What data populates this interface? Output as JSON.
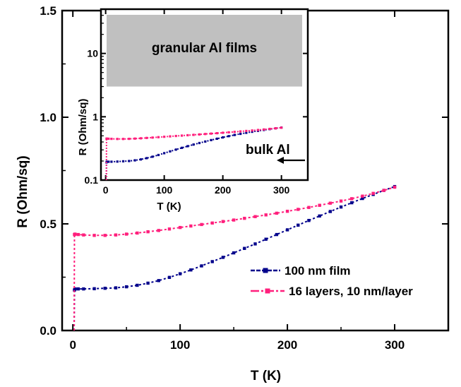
{
  "chart_data": [
    {
      "type": "line",
      "xlabel": "T (K)",
      "ylabel": "R (Ohm/sq)",
      "xlim": [
        -10,
        350
      ],
      "ylim": [
        0.0,
        1.5
      ],
      "xticks": [
        0,
        100,
        200,
        300
      ],
      "xtick_labels": [
        "0",
        "100",
        "200",
        "300"
      ],
      "yticks": [
        0.0,
        0.5,
        1.0,
        1.5
      ],
      "ytick_labels": [
        "0.0",
        "0.5",
        "1.0",
        "1.5"
      ],
      "grid": false,
      "legend_position": "bottom-right",
      "series": [
        {
          "name": "100 nm film",
          "color": "#00008b",
          "style": "dotted-squares",
          "x": [
            1.2,
            1.5,
            2,
            5,
            10,
            20,
            30,
            40,
            50,
            60,
            70,
            80,
            90,
            100,
            110,
            120,
            130,
            140,
            150,
            160,
            170,
            180,
            190,
            200,
            210,
            220,
            230,
            240,
            250,
            260,
            270,
            280,
            290,
            300
          ],
          "y": [
            0.0,
            0.19,
            0.195,
            0.195,
            0.195,
            0.196,
            0.198,
            0.2,
            0.205,
            0.212,
            0.222,
            0.234,
            0.249,
            0.266,
            0.284,
            0.303,
            0.323,
            0.343,
            0.364,
            0.385,
            0.406,
            0.428,
            0.45,
            0.472,
            0.494,
            0.516,
            0.537,
            0.558,
            0.579,
            0.599,
            0.619,
            0.638,
            0.657,
            0.675
          ]
        },
        {
          "name": "16 layers, 10 nm/layer",
          "color": "#ff1f7c",
          "style": "dotted-squares",
          "x": [
            1.2,
            1.5,
            2,
            5,
            10,
            20,
            30,
            40,
            50,
            60,
            70,
            80,
            90,
            100,
            110,
            120,
            130,
            140,
            150,
            160,
            170,
            180,
            190,
            200,
            210,
            220,
            230,
            240,
            250,
            260,
            270,
            280,
            290,
            300
          ],
          "y": [
            0.0,
            0.45,
            0.452,
            0.45,
            0.448,
            0.446,
            0.446,
            0.448,
            0.452,
            0.457,
            0.463,
            0.469,
            0.476,
            0.483,
            0.49,
            0.497,
            0.504,
            0.511,
            0.518,
            0.526,
            0.534,
            0.542,
            0.55,
            0.559,
            0.568,
            0.577,
            0.587,
            0.597,
            0.607,
            0.618,
            0.63,
            0.643,
            0.657,
            0.672
          ]
        }
      ]
    },
    {
      "type": "line",
      "xlabel": "T (K)",
      "ylabel": "R (Ohm/sq)",
      "xlim": [
        -8,
        345
      ],
      "ylim": [
        0.1,
        50
      ],
      "yscale": "log",
      "xticks": [
        0,
        100,
        200,
        300
      ],
      "xtick_labels": [
        "0",
        "100",
        "200",
        "300"
      ],
      "yticks": [
        0.1,
        1,
        10
      ],
      "ytick_labels": [
        "0.1",
        "1",
        "10"
      ],
      "grid": false,
      "annotations": {
        "shaded_band": {
          "label": "granular Al films",
          "color": "#c0c0c0",
          "y_range": [
            3.0,
            50
          ]
        },
        "arrow": {
          "label": "bulk Al"
        }
      },
      "series": [
        {
          "name": "100 nm film",
          "color": "#00008b",
          "x": [
            1.2,
            1.5,
            2,
            5,
            10,
            20,
            30,
            40,
            50,
            60,
            70,
            80,
            90,
            100,
            110,
            120,
            130,
            140,
            150,
            160,
            170,
            180,
            190,
            200,
            210,
            220,
            230,
            240,
            250,
            260,
            270,
            280,
            290,
            300
          ],
          "y": [
            0.1,
            0.19,
            0.195,
            0.195,
            0.195,
            0.196,
            0.198,
            0.2,
            0.205,
            0.212,
            0.222,
            0.234,
            0.249,
            0.266,
            0.284,
            0.303,
            0.323,
            0.343,
            0.364,
            0.385,
            0.406,
            0.428,
            0.45,
            0.472,
            0.494,
            0.516,
            0.537,
            0.558,
            0.579,
            0.599,
            0.619,
            0.638,
            0.657,
            0.675
          ]
        },
        {
          "name": "16 layers, 10 nm/layer",
          "color": "#ff1f7c",
          "x": [
            1.2,
            1.5,
            2,
            5,
            10,
            20,
            30,
            40,
            50,
            60,
            70,
            80,
            90,
            100,
            110,
            120,
            130,
            140,
            150,
            160,
            170,
            180,
            190,
            200,
            210,
            220,
            230,
            240,
            250,
            260,
            270,
            280,
            290,
            300
          ],
          "y": [
            0.1,
            0.45,
            0.452,
            0.45,
            0.448,
            0.446,
            0.446,
            0.448,
            0.452,
            0.457,
            0.463,
            0.469,
            0.476,
            0.483,
            0.49,
            0.497,
            0.504,
            0.511,
            0.518,
            0.526,
            0.534,
            0.542,
            0.55,
            0.559,
            0.568,
            0.577,
            0.587,
            0.597,
            0.607,
            0.618,
            0.63,
            0.643,
            0.657,
            0.672
          ]
        }
      ]
    }
  ]
}
